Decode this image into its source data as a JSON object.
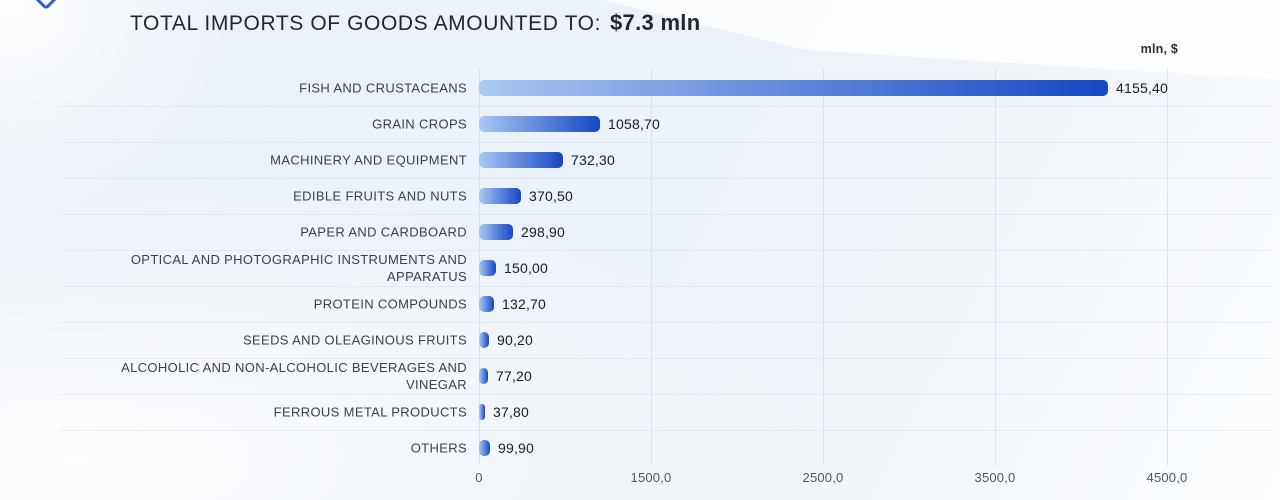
{
  "header": {
    "title_prefix": "TOTAL IMPORTS OF GOODS AMOUNTED TO:",
    "title_value": "$7.3 mln"
  },
  "chart": {
    "units_label": "mln, $"
  },
  "logo": {
    "name": "clipped-logo-mark",
    "color": "#2f5fc0"
  },
  "chart_data": {
    "type": "bar",
    "orientation": "horizontal",
    "title": "TOTAL IMPORTS OF GOODS AMOUNTED TO: $7.3 mln",
    "units": "mln, $",
    "categories": [
      "FISH AND CRUSTACEANS",
      "GRAIN CROPS",
      "MACHINERY AND EQUIPMENT",
      "EDIBLE FRUITS AND NUTS",
      "PAPER AND CARDBOARD",
      "OPTICAL AND PHOTOGRAPHIC INSTRUMENTS AND\nAPPARATUS",
      "PROTEIN COMPOUNDS",
      "SEEDS AND OLEAGINOUS FRUITS",
      "ALCOHOLIC AND NON-ALCOHOLIC BEVERAGES AND\nVINEGAR",
      "FERROUS METAL PRODUCTS",
      "OTHERS"
    ],
    "values": [
      4155.4,
      1058.7,
      732.3,
      370.5,
      298.9,
      150.0,
      132.7,
      90.2,
      77.2,
      37.8,
      99.9
    ],
    "value_labels": [
      "4155,40",
      "1058,70",
      "732,30",
      "370,50",
      "298,90",
      "150,00",
      "132,70",
      "90,20",
      "77,20",
      "37,80",
      "99,90"
    ],
    "x_ticks": [
      0,
      1500,
      2500,
      3500,
      4500
    ],
    "x_tick_labels": [
      "0",
      "1500,0",
      "2500,0",
      "3500,0",
      "4500,0"
    ],
    "axis_note": "x ticks are equally spaced despite unequal numeric intervals",
    "grid": "vertical-light",
    "legend": "none",
    "bar_gradient_start": "#aac8f3",
    "bar_gradient_end": "#1547c3"
  }
}
